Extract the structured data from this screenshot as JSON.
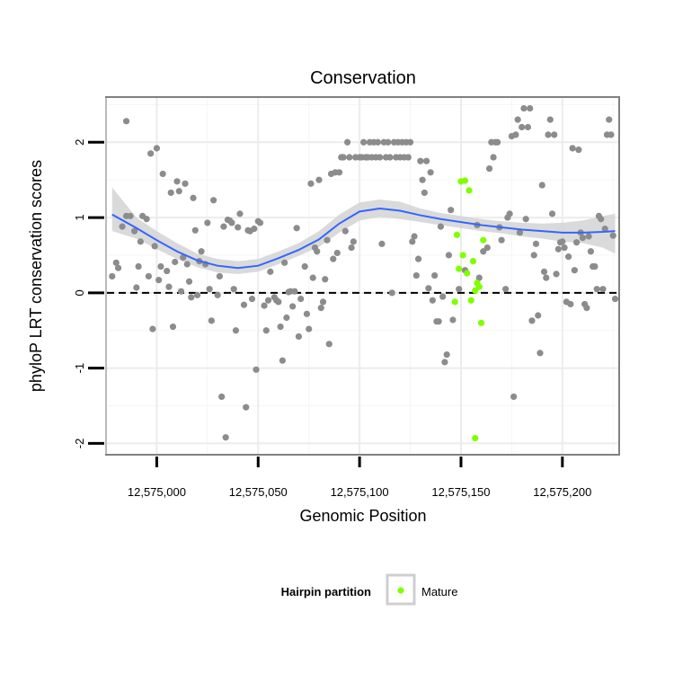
{
  "chart_data": {
    "type": "scatter",
    "title": "Conservation",
    "xlabel": "Genomic Position",
    "ylabel": "phyloP LRT conservation scores",
    "xlim": [
      12574975,
      12575228
    ],
    "ylim": [
      -2.15,
      2.6
    ],
    "x_ticks": [
      12575000,
      12575050,
      12575100,
      12575150,
      12575200
    ],
    "x_tick_labels": [
      "12,575,000",
      "12,575,050",
      "12,575,100",
      "12,575,150",
      "12,575,200"
    ],
    "y_ticks": [
      -2,
      -1,
      0,
      1,
      2
    ],
    "y_tick_labels": [
      "-2",
      "-1",
      "0",
      "1",
      "2"
    ],
    "grid": true,
    "reference_line": {
      "y": 0,
      "style": "dashed"
    },
    "legend": {
      "title": "Hairpin partition",
      "position": "bottom",
      "entries": [
        {
          "label": "Mature",
          "color": "#7fff00"
        }
      ]
    },
    "colors": {
      "other": "#8c8c8c",
      "mature": "#7fff00",
      "smooth": "#3366ff",
      "band": "#d3d3d3"
    },
    "series": [
      {
        "name": "",
        "color": "#8c8c8c",
        "points": [
          [
            12574978,
            0.22
          ],
          [
            12574980,
            0.4
          ],
          [
            12574981,
            0.33
          ],
          [
            12574983,
            0.88
          ],
          [
            12574985,
            2.28
          ],
          [
            12574985,
            1.02
          ],
          [
            12574987,
            1.02
          ],
          [
            12574989,
            0.82
          ],
          [
            12574990,
            0.07
          ],
          [
            12574991,
            0.35
          ],
          [
            12574992,
            0.68
          ],
          [
            12574993,
            1.02
          ],
          [
            12574995,
            0.98
          ],
          [
            12574996,
            0.22
          ],
          [
            12574997,
            1.85
          ],
          [
            12574998,
            -0.48
          ],
          [
            12574999,
            0.62
          ],
          [
            12575001,
            0.17
          ],
          [
            12575000,
            1.92
          ],
          [
            12575002,
            0.35
          ],
          [
            12575003,
            1.58
          ],
          [
            12575005,
            0.29
          ],
          [
            12575006,
            0.08
          ],
          [
            12575007,
            1.33
          ],
          [
            12575008,
            -0.45
          ],
          [
            12575009,
            0.41
          ],
          [
            12575010,
            1.48
          ],
          [
            12575011,
            1.35
          ],
          [
            12575012,
            0.02
          ],
          [
            12575013,
            0.47
          ],
          [
            12575014,
            1.45
          ],
          [
            12575015,
            0.38
          ],
          [
            12575016,
            0.15
          ],
          [
            12575017,
            -0.06
          ],
          [
            12575018,
            1.26
          ],
          [
            12575019,
            0.83
          ],
          [
            12575020,
            -0.03
          ],
          [
            12575021,
            0.42
          ],
          [
            12575022,
            0.55
          ],
          [
            12575024,
            0.38
          ],
          [
            12575025,
            0.93
          ],
          [
            12575026,
            0.05
          ],
          [
            12575027,
            -0.37
          ],
          [
            12575028,
            1.23
          ],
          [
            12575030,
            -0.03
          ],
          [
            12575031,
            0.22
          ],
          [
            12575032,
            -1.38
          ],
          [
            12575033,
            0.88
          ],
          [
            12575034,
            -1.92
          ],
          [
            12575035,
            0.97
          ],
          [
            12575036,
            0.96
          ],
          [
            12575037,
            0.93
          ],
          [
            12575038,
            0.05
          ],
          [
            12575039,
            -0.5
          ],
          [
            12575040,
            0.87
          ],
          [
            12575041,
            1.05
          ],
          [
            12575043,
            -0.16
          ],
          [
            12575044,
            -1.52
          ],
          [
            12575045,
            0.83
          ],
          [
            12575046,
            0.82
          ],
          [
            12575047,
            -0.08
          ],
          [
            12575048,
            0.85
          ],
          [
            12575049,
            -1.02
          ],
          [
            12575050,
            0.95
          ],
          [
            12575051,
            0.93
          ],
          [
            12575053,
            -0.17
          ],
          [
            12575054,
            -0.5
          ],
          [
            12575055,
            -0.1
          ],
          [
            12575056,
            0.28
          ],
          [
            12575058,
            -0.06
          ],
          [
            12575059,
            -0.1
          ],
          [
            12575060,
            -0.12
          ],
          [
            12575061,
            -0.45
          ],
          [
            12575062,
            -0.9
          ],
          [
            12575063,
            0.4
          ],
          [
            12575064,
            -0.33
          ],
          [
            12575065,
            0.01
          ],
          [
            12575066,
            0.02
          ],
          [
            12575067,
            -0.18
          ],
          [
            12575068,
            0.02
          ],
          [
            12575069,
            0.86
          ],
          [
            12575070,
            -0.58
          ],
          [
            12575071,
            -0.08
          ],
          [
            12575073,
            0.35
          ],
          [
            12575074,
            -0.28
          ],
          [
            12575075,
            -0.48
          ],
          [
            12575076,
            1.45
          ],
          [
            12575077,
            0.2
          ],
          [
            12575078,
            0.6
          ],
          [
            12575079,
            0.55
          ],
          [
            12575080,
            1.5
          ],
          [
            12575081,
            -0.2
          ],
          [
            12575082,
            -0.12
          ],
          [
            12575083,
            0.18
          ],
          [
            12575084,
            0.7
          ],
          [
            12575085,
            -0.68
          ],
          [
            12575086,
            1.58
          ],
          [
            12575087,
            0.45
          ],
          [
            12575088,
            1.6
          ],
          [
            12575089,
            0.53
          ],
          [
            12575090,
            1.6
          ],
          [
            12575091,
            1.8
          ],
          [
            12575092,
            1.8
          ],
          [
            12575093,
            0.82
          ],
          [
            12575094,
            2.0
          ],
          [
            12575095,
            1.8
          ],
          [
            12575096,
            0.6
          ],
          [
            12575097,
            0.68
          ],
          [
            12575098,
            1.8
          ],
          [
            12575100,
            1.8
          ],
          [
            12575101,
            1.8
          ],
          [
            12575102,
            2.0
          ],
          [
            12575103,
            1.8
          ],
          [
            12575104,
            1.8
          ],
          [
            12575105,
            2.0
          ],
          [
            12575106,
            1.8
          ],
          [
            12575107,
            2.0
          ],
          [
            12575108,
            1.8
          ],
          [
            12575109,
            2.0
          ],
          [
            12575110,
            1.8
          ],
          [
            12575111,
            0.65
          ],
          [
            12575112,
            2.0
          ],
          [
            12575113,
            1.8
          ],
          [
            12575114,
            2.0
          ],
          [
            12575115,
            1.8
          ],
          [
            12575116,
            0.0
          ],
          [
            12575117,
            2.0
          ],
          [
            12575118,
            1.8
          ],
          [
            12575119,
            2.0
          ],
          [
            12575120,
            1.8
          ],
          [
            12575121,
            2.0
          ],
          [
            12575122,
            1.8
          ],
          [
            12575123,
            2.0
          ],
          [
            12575124,
            1.8
          ],
          [
            12575125,
            2.0
          ],
          [
            12575126,
            0.68
          ],
          [
            12575127,
            0.75
          ],
          [
            12575128,
            0.23
          ],
          [
            12575129,
            0.45
          ],
          [
            12575130,
            1.75
          ],
          [
            12575131,
            1.5
          ],
          [
            12575132,
            1.33
          ],
          [
            12575133,
            1.75
          ],
          [
            12575134,
            0.06
          ],
          [
            12575135,
            1.6
          ],
          [
            12575136,
            -0.1
          ],
          [
            12575137,
            0.23
          ],
          [
            12575138,
            -0.38
          ],
          [
            12575139,
            -0.38
          ],
          [
            12575140,
            0.88
          ],
          [
            12575141,
            -0.05
          ],
          [
            12575142,
            -0.92
          ],
          [
            12575143,
            -0.82
          ],
          [
            12575144,
            0.5
          ],
          [
            12575145,
            1.1
          ],
          [
            12575146,
            -0.36
          ],
          [
            12575149,
            0.05
          ],
          [
            12575152,
            0.3
          ],
          [
            12575158,
            0.9
          ],
          [
            12575159,
            0.2
          ],
          [
            12575161,
            0.55
          ],
          [
            12575163,
            0.6
          ],
          [
            12575164,
            1.65
          ],
          [
            12575165,
            2.0
          ],
          [
            12575166,
            1.8
          ],
          [
            12575167,
            2.0
          ],
          [
            12575168,
            2.0
          ],
          [
            12575169,
            0.87
          ],
          [
            12575170,
            0.7
          ],
          [
            12575172,
            0.05
          ],
          [
            12575173,
            1.0
          ],
          [
            12575174,
            1.05
          ],
          [
            12575175,
            2.08
          ],
          [
            12575176,
            -1.38
          ],
          [
            12575177,
            2.1
          ],
          [
            12575178,
            2.3
          ],
          [
            12575179,
            0.8
          ],
          [
            12575180,
            2.2
          ],
          [
            12575181,
            2.45
          ],
          [
            12575182,
            0.98
          ],
          [
            12575183,
            2.2
          ],
          [
            12575184,
            2.45
          ],
          [
            12575185,
            -0.37
          ],
          [
            12575186,
            0.5
          ],
          [
            12575187,
            0.65
          ],
          [
            12575188,
            -0.3
          ],
          [
            12575189,
            -0.8
          ],
          [
            12575190,
            1.43
          ],
          [
            12575191,
            0.28
          ],
          [
            12575192,
            0.2
          ],
          [
            12575193,
            2.1
          ],
          [
            12575194,
            2.3
          ],
          [
            12575195,
            1.05
          ],
          [
            12575196,
            2.1
          ],
          [
            12575197,
            0.25
          ],
          [
            12575198,
            0.58
          ],
          [
            12575199,
            0.67
          ],
          [
            12575200,
            0.68
          ],
          [
            12575201,
            0.6
          ],
          [
            12575202,
            -0.12
          ],
          [
            12575203,
            0.48
          ],
          [
            12575204,
            -0.15
          ],
          [
            12575205,
            1.92
          ],
          [
            12575206,
            0.3
          ],
          [
            12575207,
            0.67
          ],
          [
            12575208,
            1.9
          ],
          [
            12575209,
            0.8
          ],
          [
            12575210,
            0.73
          ],
          [
            12575211,
            -0.15
          ],
          [
            12575212,
            -0.2
          ],
          [
            12575213,
            0.75
          ],
          [
            12575214,
            0.55
          ],
          [
            12575215,
            0.35
          ],
          [
            12575216,
            0.35
          ],
          [
            12575217,
            0.05
          ],
          [
            12575218,
            1.02
          ],
          [
            12575219,
            0.98
          ],
          [
            12575220,
            0.05
          ],
          [
            12575221,
            0.85
          ],
          [
            12575222,
            2.1
          ],
          [
            12575223,
            2.3
          ],
          [
            12575224,
            2.1
          ],
          [
            12575225,
            0.76
          ],
          [
            12575226,
            -0.08
          ]
        ]
      },
      {
        "name": "Mature",
        "color": "#7fff00",
        "points": [
          [
            12575147,
            -0.12
          ],
          [
            12575148,
            0.77
          ],
          [
            12575149,
            0.32
          ],
          [
            12575150,
            1.48
          ],
          [
            12575151,
            0.5
          ],
          [
            12575152,
            1.49
          ],
          [
            12575153,
            0.26
          ],
          [
            12575154,
            1.36
          ],
          [
            12575155,
            -0.1
          ],
          [
            12575156,
            0.42
          ],
          [
            12575157,
            -1.93
          ],
          [
            12575157,
            0.03
          ],
          [
            12575158,
            0.13
          ],
          [
            12575159,
            0.08
          ],
          [
            12575160,
            -0.4
          ],
          [
            12575161,
            0.7
          ]
        ]
      }
    ],
    "smooth": {
      "name": "",
      "color": "#3366ff",
      "x": [
        12574978,
        12574990,
        12575000,
        12575010,
        12575020,
        12575030,
        12575040,
        12575050,
        12575060,
        12575070,
        12575080,
        12575090,
        12575100,
        12575110,
        12575120,
        12575130,
        12575140,
        12575150,
        12575160,
        12575170,
        12575180,
        12575190,
        12575200,
        12575210,
        12575220,
        12575226
      ],
      "y": [
        1.04,
        0.86,
        0.7,
        0.55,
        0.43,
        0.36,
        0.33,
        0.36,
        0.46,
        0.57,
        0.71,
        0.92,
        1.08,
        1.12,
        1.09,
        1.03,
        0.98,
        0.94,
        0.9,
        0.87,
        0.84,
        0.82,
        0.8,
        0.8,
        0.81,
        0.82
      ],
      "lower": [
        0.82,
        0.72,
        0.58,
        0.45,
        0.34,
        0.27,
        0.25,
        0.28,
        0.38,
        0.49,
        0.61,
        0.8,
        0.96,
        1.01,
        0.98,
        0.94,
        0.9,
        0.86,
        0.82,
        0.79,
        0.75,
        0.72,
        0.68,
        0.66,
        0.6,
        0.52
      ],
      "upper": [
        1.4,
        1.0,
        0.82,
        0.66,
        0.52,
        0.45,
        0.42,
        0.45,
        0.55,
        0.66,
        0.82,
        1.04,
        1.2,
        1.24,
        1.21,
        1.12,
        1.06,
        1.02,
        0.98,
        0.95,
        0.93,
        0.92,
        0.93,
        0.96,
        1.02,
        1.05
      ]
    }
  }
}
